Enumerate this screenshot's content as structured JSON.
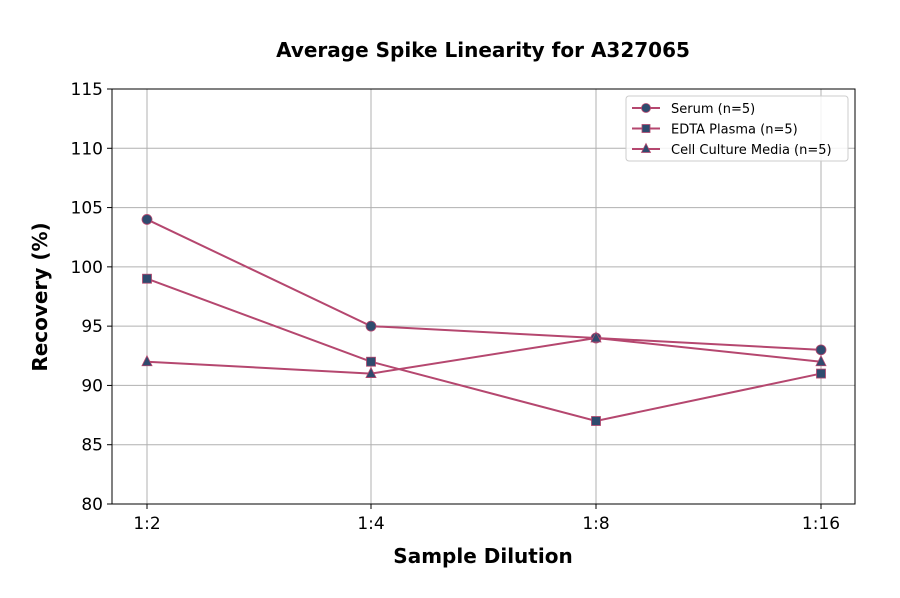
{
  "chart_data": {
    "type": "line",
    "title": "Average Spike Linearity for A327065",
    "xlabel": "Sample Dilution",
    "ylabel": "Recovery (%)",
    "categories": [
      "1:2",
      "1:4",
      "1:8",
      "1:16"
    ],
    "ylim": [
      80,
      115
    ],
    "yticks": [
      80,
      85,
      90,
      95,
      100,
      105,
      110,
      115
    ],
    "grid": true,
    "legend_position": "top-right",
    "line_color": "#b5476f",
    "marker_color": "#2f4b6e",
    "series": [
      {
        "name": "Serum (n=5)",
        "marker": "circle",
        "values": [
          104,
          95,
          94,
          93
        ]
      },
      {
        "name": "EDTA Plasma (n=5)",
        "marker": "square",
        "values": [
          99,
          92,
          87,
          91
        ]
      },
      {
        "name": "Cell Culture Media (n=5)",
        "marker": "triangle",
        "values": [
          92,
          91,
          94,
          92
        ]
      }
    ]
  }
}
